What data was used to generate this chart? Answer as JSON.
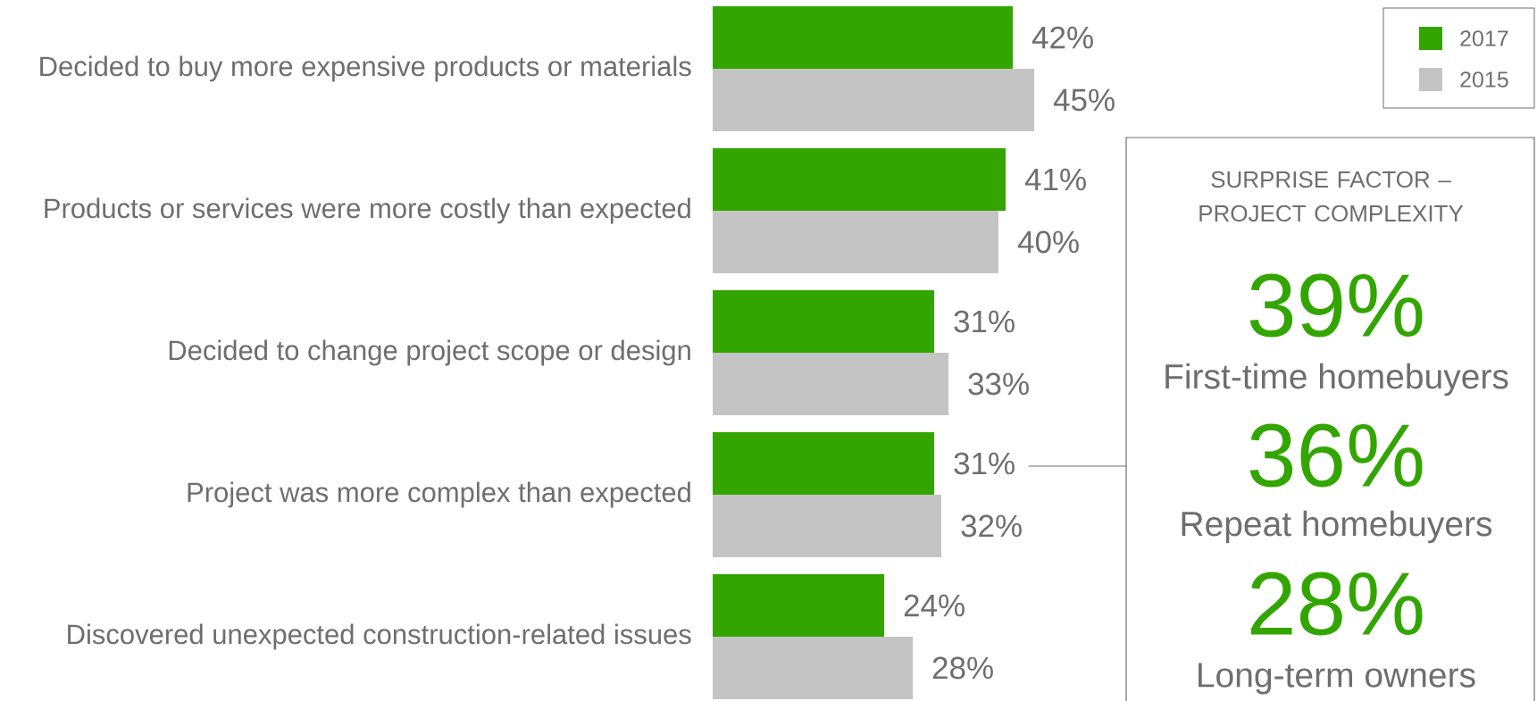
{
  "chart_data": [
    {
      "type": "bar",
      "orientation": "horizontal",
      "legend": "top right",
      "categories": [
        "Decided to buy more expensive products or materials",
        "Products or services were more costly than expected",
        "Decided to change project scope or design",
        "Project was more complex than expected",
        "Discovered unexpected construction-related issues"
      ],
      "series": [
        {
          "name": "2017",
          "color": "#33a500",
          "values": [
            42,
            41,
            31,
            31,
            24
          ],
          "value_labels": [
            "42%",
            "41%",
            "31%",
            "31%",
            "24%"
          ]
        },
        {
          "name": "2015",
          "color": "#c4c4c4",
          "values": [
            45,
            40,
            33,
            32,
            28
          ],
          "value_labels": [
            "45%",
            "40%",
            "33%",
            "32%",
            "28%"
          ]
        }
      ]
    },
    {
      "type": "other",
      "title": "SURPRISE FACTOR – PROJECT COMPLEXITY",
      "annotations": [
        "39%",
        "First-time homebuyers",
        "36%",
        "Repeat homebuyers",
        "28%",
        "Long-term owners"
      ]
    }
  ]
}
